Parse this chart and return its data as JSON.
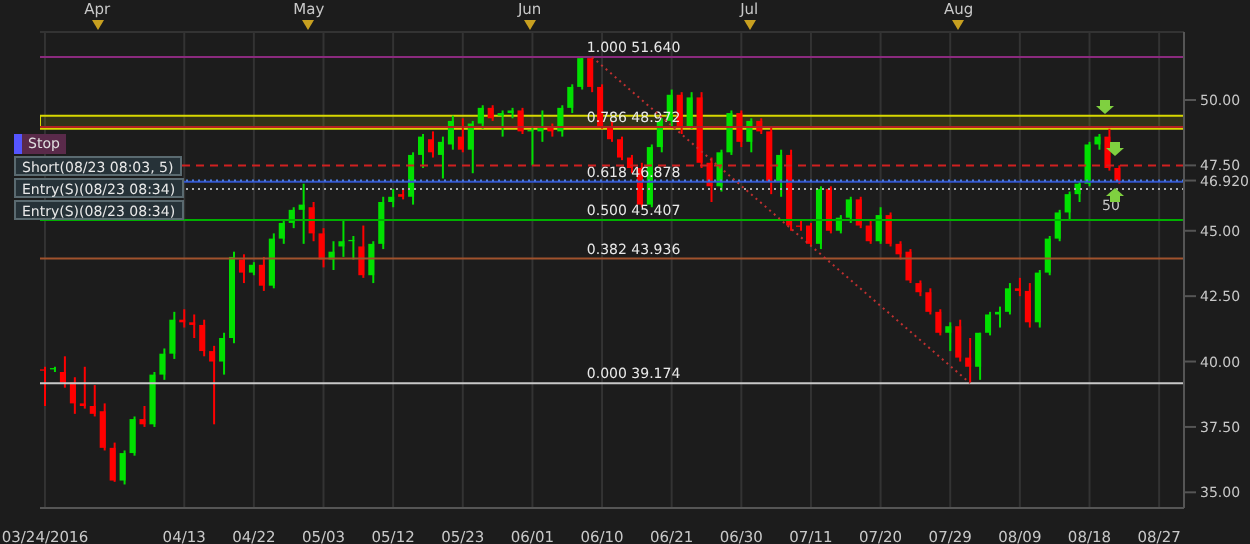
{
  "chart_data": {
    "type": "candlestick",
    "categories": [
      "03/24/2016",
      null,
      null,
      null,
      null,
      null,
      null,
      null,
      null,
      null,
      null,
      null,
      null,
      null,
      "04/13",
      null,
      null,
      null,
      null,
      null,
      null,
      "04/22",
      null,
      null,
      null,
      null,
      null,
      null,
      "05/03",
      null,
      null,
      null,
      null,
      null,
      null,
      "05/12",
      null,
      null,
      null,
      null,
      null,
      null,
      "05/23",
      null,
      null,
      null,
      null,
      null,
      null,
      "06/01",
      null,
      null,
      null,
      null,
      null,
      null,
      "06/10",
      null,
      null,
      null,
      null,
      null,
      null,
      "06/21",
      null,
      null,
      null,
      null,
      null,
      null,
      "06/30",
      null,
      null,
      null,
      null,
      null,
      null,
      "07/11",
      null,
      null,
      null,
      null,
      null,
      null,
      "07/20",
      null,
      null,
      null,
      null,
      null,
      null,
      "07/29",
      null,
      null,
      null,
      null,
      null,
      null,
      "08/09",
      null,
      null,
      null,
      null,
      null,
      null,
      "08/18",
      null,
      null,
      null,
      null,
      null,
      null,
      "08/27",
      null,
      null
    ],
    "ohlc": [
      [
        39.7,
        39.8,
        38.3,
        39.65
      ],
      [
        39.7,
        39.8,
        39.6,
        39.75
      ],
      [
        39.6,
        40.2,
        39.0,
        39.2
      ],
      [
        39.2,
        39.4,
        38.0,
        38.4
      ],
      [
        38.4,
        39.8,
        38.2,
        38.3
      ],
      [
        38.3,
        39.1,
        37.9,
        38.0
      ],
      [
        38.1,
        38.4,
        36.6,
        36.7
      ],
      [
        36.7,
        36.9,
        35.4,
        35.45
      ],
      [
        35.45,
        36.6,
        35.3,
        36.5
      ],
      [
        36.5,
        37.9,
        36.4,
        37.8
      ],
      [
        37.8,
        38.3,
        37.5,
        37.6
      ],
      [
        37.6,
        39.6,
        37.5,
        39.5
      ],
      [
        39.5,
        40.5,
        39.3,
        40.3
      ],
      [
        40.3,
        41.9,
        40.1,
        41.6
      ],
      [
        41.6,
        42.0,
        41.3,
        41.5
      ],
      [
        41.5,
        41.8,
        40.9,
        41.4
      ],
      [
        41.4,
        41.6,
        40.2,
        40.4
      ],
      [
        40.4,
        40.6,
        37.6,
        40.0
      ],
      [
        40.0,
        41.1,
        39.5,
        40.9
      ],
      [
        40.9,
        44.2,
        40.7,
        44.0
      ],
      [
        43.9,
        44.1,
        43.0,
        43.4
      ],
      [
        43.4,
        43.8,
        43.3,
        43.7
      ],
      [
        43.7,
        44.0,
        42.7,
        42.9
      ],
      [
        42.9,
        44.9,
        42.8,
        44.7
      ],
      [
        44.7,
        45.4,
        44.5,
        45.3
      ],
      [
        45.3,
        45.9,
        45.1,
        45.8
      ],
      [
        45.8,
        46.8,
        44.5,
        46.0
      ],
      [
        45.9,
        46.1,
        44.6,
        44.9
      ],
      [
        44.9,
        45.1,
        43.6,
        43.9
      ],
      [
        43.9,
        44.6,
        43.5,
        44.2
      ],
      [
        44.4,
        45.4,
        44.0,
        44.6
      ],
      [
        44.6,
        44.8,
        43.9,
        44.65
      ],
      [
        44.4,
        45.2,
        43.2,
        43.3
      ],
      [
        43.3,
        44.6,
        43.0,
        44.5
      ],
      [
        44.5,
        46.3,
        44.3,
        46.1
      ],
      [
        46.1,
        46.6,
        45.9,
        46.3
      ],
      [
        46.4,
        46.6,
        46.2,
        46.3
      ],
      [
        46.3,
        48.0,
        46.0,
        47.9
      ],
      [
        47.9,
        48.7,
        47.4,
        48.6
      ],
      [
        48.5,
        48.8,
        47.8,
        48.0
      ],
      [
        47.9,
        48.6,
        47.0,
        48.4
      ],
      [
        48.3,
        49.4,
        48.1,
        49.2
      ],
      [
        48.6,
        49.3,
        48.0,
        48.1
      ],
      [
        48.1,
        49.2,
        47.2,
        49.1
      ],
      [
        49.1,
        49.8,
        48.9,
        49.7
      ],
      [
        49.7,
        49.8,
        49.2,
        49.3
      ],
      [
        49.4,
        49.6,
        48.6,
        49.5
      ],
      [
        49.5,
        49.7,
        49.3,
        49.6
      ],
      [
        49.6,
        49.7,
        48.7,
        48.8
      ],
      [
        48.8,
        49.0,
        47.5,
        48.85
      ],
      [
        48.8,
        49.6,
        48.4,
        49.0
      ],
      [
        49.0,
        49.1,
        48.6,
        48.8
      ],
      [
        48.8,
        49.8,
        48.6,
        49.7
      ],
      [
        49.7,
        50.6,
        49.5,
        50.5
      ],
      [
        50.5,
        51.64,
        50.4,
        51.6
      ],
      [
        51.6,
        51.64,
        50.3,
        50.5
      ],
      [
        50.5,
        50.6,
        48.9,
        49.0
      ],
      [
        49.0,
        49.2,
        48.4,
        48.5
      ],
      [
        48.5,
        48.6,
        47.7,
        47.8
      ],
      [
        47.8,
        47.9,
        47.2,
        47.4
      ],
      [
        47.4,
        47.6,
        45.9,
        46.0
      ],
      [
        46.0,
        48.3,
        45.9,
        48.2
      ],
      [
        48.2,
        49.3,
        48.0,
        49.2
      ],
      [
        49.2,
        50.4,
        49.0,
        50.2
      ],
      [
        50.2,
        50.3,
        48.7,
        49.0
      ],
      [
        49.0,
        50.3,
        48.9,
        50.1
      ],
      [
        50.1,
        50.3,
        47.4,
        47.6
      ],
      [
        47.6,
        47.8,
        46.1,
        46.7
      ],
      [
        46.7,
        48.1,
        46.5,
        48.0
      ],
      [
        48.0,
        49.6,
        47.9,
        49.5
      ],
      [
        49.5,
        49.6,
        48.2,
        48.4
      ],
      [
        48.4,
        49.3,
        48.0,
        49.2
      ],
      [
        49.2,
        49.3,
        48.7,
        48.8
      ],
      [
        48.8,
        49.0,
        46.4,
        46.9
      ],
      [
        46.9,
        48.1,
        46.3,
        47.9
      ],
      [
        47.9,
        48.1,
        45.0,
        45.2
      ],
      [
        45.2,
        45.4,
        45.0,
        45.15
      ],
      [
        45.2,
        45.3,
        44.4,
        44.5
      ],
      [
        44.5,
        46.7,
        44.3,
        46.6
      ],
      [
        46.6,
        46.7,
        44.9,
        45.0
      ],
      [
        45.0,
        45.6,
        44.9,
        45.5
      ],
      [
        45.5,
        46.3,
        45.3,
        46.2
      ],
      [
        46.2,
        46.3,
        45.1,
        45.2
      ],
      [
        45.2,
        45.4,
        44.5,
        44.6
      ],
      [
        44.6,
        45.9,
        44.5,
        45.6
      ],
      [
        45.6,
        45.7,
        44.4,
        44.5
      ],
      [
        44.5,
        44.6,
        43.9,
        44.1
      ],
      [
        44.2,
        44.3,
        43.0,
        43.1
      ],
      [
        43.0,
        43.1,
        42.5,
        42.65
      ],
      [
        42.65,
        42.8,
        41.8,
        41.9
      ],
      [
        41.9,
        42.0,
        41.0,
        41.1
      ],
      [
        41.1,
        41.5,
        40.4,
        41.35
      ],
      [
        41.35,
        41.6,
        40.0,
        40.15
      ],
      [
        40.15,
        40.9,
        39.174,
        39.8
      ],
      [
        39.8,
        41.1,
        39.3,
        41.1
      ],
      [
        41.1,
        41.9,
        41.0,
        41.8
      ],
      [
        41.8,
        42.1,
        41.3,
        41.9
      ],
      [
        41.9,
        43.0,
        41.8,
        42.8
      ],
      [
        42.8,
        43.2,
        42.5,
        42.7
      ],
      [
        42.7,
        43.0,
        41.3,
        41.5
      ],
      [
        41.5,
        43.5,
        41.3,
        43.4
      ],
      [
        43.4,
        44.8,
        43.3,
        44.7
      ],
      [
        44.7,
        45.8,
        44.6,
        45.7
      ],
      [
        45.7,
        46.5,
        45.4,
        46.4
      ],
      [
        46.4,
        46.9,
        46.1,
        46.8
      ],
      [
        46.8,
        48.4,
        46.7,
        48.3
      ],
      [
        48.3,
        48.7,
        48.1,
        48.6
      ],
      [
        48.6,
        48.9,
        47.3,
        47.4
      ],
      [
        47.4,
        47.5,
        46.8,
        46.92
      ],
      null,
      null,
      null,
      null,
      null,
      null
    ],
    "colors": [
      "#ff0000",
      "#00e000",
      "#ff0000",
      "#ff0000",
      "#ff0000",
      "#ff0000",
      "#ff0000",
      "#ff0000",
      "#00e000",
      "#00e000",
      "#ff0000",
      "#00e000",
      "#00e000",
      "#00e000",
      "#ff0000",
      "#ff0000",
      "#ff0000",
      "#ff0000",
      "#00e000",
      "#00e000",
      "#ff0000",
      "#00e000",
      "#ff0000",
      "#00e000",
      "#00e000",
      "#00e000",
      "#00e000",
      "#ff0000",
      "#ff0000",
      "#00e000",
      "#00e000",
      "#00e000",
      "#ff0000",
      "#00e000",
      "#00e000",
      "#00e000",
      "#ff0000",
      "#00e000",
      "#00e000",
      "#ff0000",
      "#00e000",
      "#00e000",
      "#ff0000",
      "#00e000",
      "#00e000",
      "#ff0000",
      "#00e000",
      "#00e000",
      "#ff0000",
      "#00e000",
      "#00e000",
      "#ff0000",
      "#00e000",
      "#00e000",
      "#00e000",
      "#ff0000",
      "#ff0000",
      "#ff0000",
      "#ff0000",
      "#ff0000",
      "#ff0000",
      "#00e000",
      "#00e000",
      "#00e000",
      "#ff0000",
      "#00e000",
      "#ff0000",
      "#ff0000",
      "#00e000",
      "#00e000",
      "#ff0000",
      "#00e000",
      "#ff0000",
      "#ff0000",
      "#00e000",
      "#ff0000",
      "#ff0000",
      "#ff0000",
      "#00e000",
      "#ff0000",
      "#00e000",
      "#00e000",
      "#ff0000",
      "#ff0000",
      "#00e000",
      "#ff0000",
      "#ff0000",
      "#ff0000",
      "#ff0000",
      "#ff0000",
      "#ff0000",
      "#00e000",
      "#ff0000",
      "#ff0000",
      "#00e000",
      "#00e000",
      "#00e000",
      "#00e000",
      "#ff0000",
      "#ff0000",
      "#00e000",
      "#00e000",
      "#00e000",
      "#00e000",
      "#00e000",
      "#00e000",
      "#00e000",
      "#ff0000",
      "#ff0000",
      null,
      null,
      null,
      null,
      null,
      null
    ],
    "series": [
      {
        "type": "line",
        "color": "#c03030",
        "line_style": "dotted",
        "values": [
          null,
          null,
          null,
          null,
          null,
          null,
          null,
          null,
          null,
          null,
          null,
          null,
          null,
          null,
          null,
          null,
          null,
          null,
          null,
          null,
          null,
          null,
          null,
          null,
          null,
          null,
          null,
          null,
          null,
          null,
          null,
          null,
          null,
          null,
          null,
          null,
          null,
          null,
          null,
          null,
          null,
          null,
          null,
          null,
          null,
          null,
          null,
          null,
          null,
          null,
          null,
          null,
          null,
          null,
          null,
          51.64,
          null,
          null,
          null,
          null,
          null,
          null,
          null,
          null,
          null,
          null,
          null,
          null,
          null,
          null,
          null,
          null,
          null,
          null,
          null,
          null,
          null,
          null,
          null,
          null,
          null,
          null,
          null,
          null,
          null,
          null,
          null,
          null,
          null,
          null,
          null,
          null,
          null,
          39.174,
          null,
          null,
          null,
          null,
          null,
          null,
          null,
          null,
          null,
          null,
          null,
          null,
          null,
          null,
          null,
          null,
          null,
          null,
          null,
          null,
          null
        ]
      }
    ],
    "ylim": [
      34.4,
      52.6
    ],
    "yticks": [
      {
        "value": 35,
        "label": "35.00"
      },
      {
        "value": 37.5,
        "label": "37.50"
      },
      {
        "value": 40,
        "label": "40.00"
      },
      {
        "value": 42.5,
        "label": "42.50"
      },
      {
        "value": 45,
        "label": "45.00"
      },
      {
        "value": 46.92,
        "label": "46.920"
      },
      {
        "value": 47.5,
        "label": "47.50"
      },
      {
        "value": 50,
        "label": "50.00"
      }
    ],
    "ref_lines": [
      {
        "axis": "y",
        "value": 51.64,
        "label": "1.000 51.640",
        "color": "#8a2a7e"
      },
      {
        "axis": "y",
        "value": 48.972,
        "label": "0.786 48.972",
        "color": "#b22222"
      },
      {
        "axis": "y",
        "value": 46.878,
        "label": "0.618 46.878",
        "color": "#3355cc"
      },
      {
        "axis": "y",
        "value": 45.407,
        "label": "0.500 45.407",
        "color": "#00b000"
      },
      {
        "axis": "y",
        "value": 43.936,
        "label": "0.382 43.936",
        "color": "#a0522d"
      },
      {
        "axis": "y",
        "value": 39.174,
        "label": "0.000 39.174",
        "color": "#c8c8c8"
      },
      {
        "axis": "y",
        "value": 47.5,
        "color": "#d02020",
        "line_style": "dashed"
      },
      {
        "axis": "y",
        "value": 46.92,
        "color": "#4f7fe0",
        "line_style": "dotted"
      },
      {
        "axis": "y",
        "value": 46.6,
        "color": "#b0b0b0",
        "line_style": "dotted"
      }
    ],
    "bands": [
      {
        "axis": "y",
        "from": 48.9,
        "to": 49.4,
        "color": "#d8d800"
      }
    ],
    "annotations": [
      "Apr",
      "May",
      "Jun",
      "Jul",
      "Aug",
      "Stop",
      {
        "text": "Short(08/23 08:03, 5)",
        "y": 47.5
      },
      {
        "text": "Entry(S)(08/23 08:34)",
        "y": 46.92
      },
      {
        "text": "Entry(S)(08/23 08:34)",
        "y": 46.6
      },
      "50"
    ],
    "grid": true
  }
}
